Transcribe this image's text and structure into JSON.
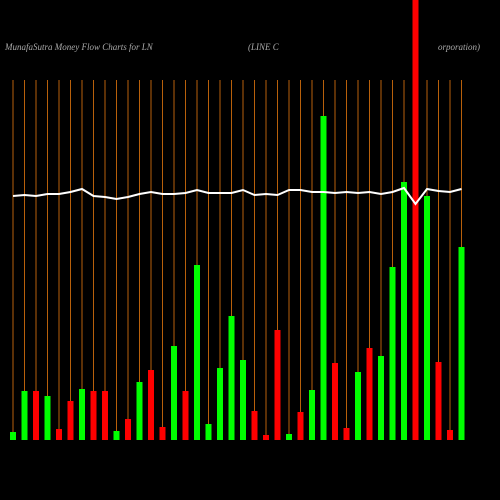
{
  "chart_data": {
    "type": "bar",
    "title": "MunafaSutra  Money Flow  Charts for LN",
    "subtitle": "(LINE C",
    "subtitle_2": "orporation)",
    "categories": [
      null,
      null,
      null,
      null,
      null,
      null,
      null,
      null,
      null,
      null,
      null,
      null,
      null,
      null,
      null,
      null,
      null,
      null,
      null,
      null,
      null,
      null,
      null,
      null,
      null,
      null,
      null,
      null,
      null,
      null,
      null,
      null,
      null,
      null,
      null,
      null,
      null,
      null,
      null,
      null
    ],
    "values": [
      8,
      49,
      49,
      44,
      11,
      39,
      51,
      49,
      49,
      9,
      21,
      58,
      70,
      13,
      94,
      49,
      175,
      16,
      72,
      124,
      80,
      29,
      5,
      110,
      6,
      28,
      50,
      324,
      77,
      12,
      68,
      92,
      84,
      173,
      258,
      440,
      244,
      78,
      10,
      193
    ],
    "bar_colors": [
      "#00ff00",
      "#00ff00",
      "#ff0000",
      "#00ff00",
      "#ff0000",
      "#ff0000",
      "#00ff00",
      "#ff0000",
      "#ff0000",
      "#00ff00",
      "#ff0000",
      "#00ff00",
      "#ff0000",
      "#ff0000",
      "#00ff00",
      "#ff0000",
      "#00ff00",
      "#00ff00",
      "#00ff00",
      "#00ff00",
      "#00ff00",
      "#ff0000",
      "#ff0000",
      "#ff0000",
      "#00ff00",
      "#ff0000",
      "#00ff00",
      "#00ff00",
      "#ff0000",
      "#ff0000",
      "#00ff00",
      "#ff0000",
      "#00ff00",
      "#00ff00",
      "#00ff00",
      "#ff0000",
      "#00ff00",
      "#ff0000",
      "#ff0000",
      "#00ff00"
    ],
    "line": {
      "color": "#ffffff",
      "values": [
        244,
        245,
        244,
        246,
        246,
        248,
        251,
        244,
        243,
        241,
        243,
        246,
        248,
        246,
        246,
        247,
        250,
        247,
        247,
        247,
        250,
        245,
        246,
        245,
        250,
        250,
        248,
        248,
        247,
        248,
        247,
        248,
        246,
        248,
        252,
        236,
        251,
        249,
        248,
        251
      ]
    },
    "ylim": [
      0,
      440
    ],
    "grid_color": "#b8600b"
  }
}
